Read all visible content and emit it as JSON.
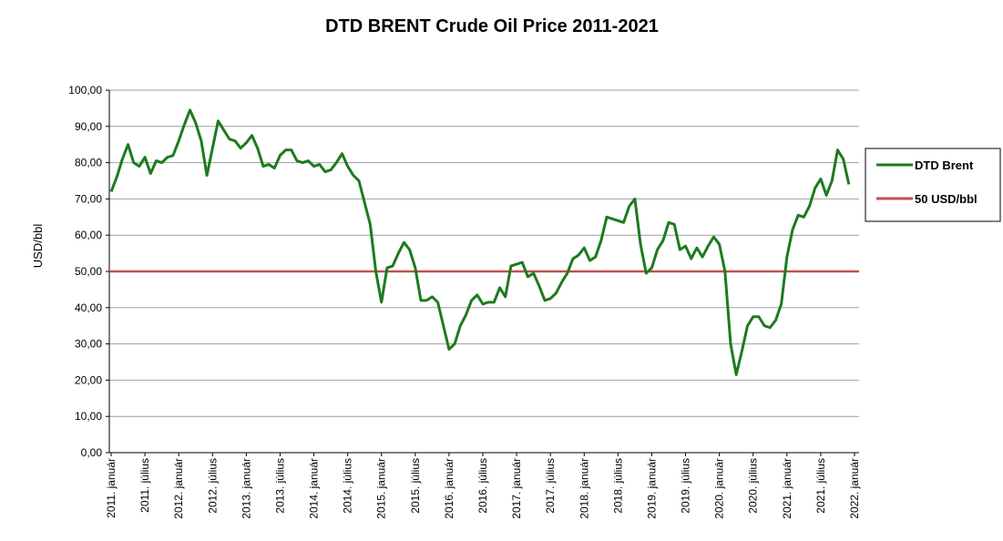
{
  "chart_data": {
    "type": "line",
    "title": "DTD BRENT Crude Oil Price 2011-2021",
    "y_label": "USD/bbl",
    "categories": [
      "2011. január",
      null,
      null,
      null,
      null,
      null,
      "2011. július",
      null,
      null,
      null,
      null,
      null,
      "2012. január",
      null,
      null,
      null,
      null,
      null,
      "2012. július",
      null,
      null,
      null,
      null,
      null,
      "2013. január",
      null,
      null,
      null,
      null,
      null,
      "2013. július",
      null,
      null,
      null,
      null,
      null,
      "2014. január",
      null,
      null,
      null,
      null,
      null,
      "2014. július",
      null,
      null,
      null,
      null,
      null,
      "2015. január",
      null,
      null,
      null,
      null,
      null,
      "2015. július",
      null,
      null,
      null,
      null,
      null,
      "2016. január",
      null,
      null,
      null,
      null,
      null,
      "2016. július",
      null,
      null,
      null,
      null,
      null,
      "2017. január",
      null,
      null,
      null,
      null,
      null,
      "2017. július",
      null,
      null,
      null,
      null,
      null,
      "2018. január",
      null,
      null,
      null,
      null,
      null,
      "2018. július",
      null,
      null,
      null,
      null,
      null,
      "2019. január",
      null,
      null,
      null,
      null,
      null,
      "2019. július",
      null,
      null,
      null,
      null,
      null,
      "2020. január",
      null,
      null,
      null,
      null,
      null,
      "2020. július",
      null,
      null,
      null,
      null,
      null,
      "2021. január",
      null,
      null,
      null,
      null,
      null,
      "2021. július",
      null,
      null,
      null,
      null,
      null,
      "2022. január"
    ],
    "series": [
      {
        "name": "DTD Brent",
        "color": "#1e7a1e",
        "values": [
          72,
          76,
          81,
          85,
          80,
          79,
          81.5,
          77,
          80.5,
          80,
          81.5,
          82,
          86,
          90.5,
          94.5,
          91,
          86,
          76.5,
          84,
          91.5,
          89,
          86.5,
          86,
          84,
          85.5,
          87.5,
          84,
          79,
          79.5,
          78.5,
          82,
          83.5,
          83.5,
          80.5,
          80,
          80.5,
          79,
          79.5,
          77.5,
          78,
          80,
          82.5,
          79,
          76.5,
          75,
          69,
          63,
          50,
          41.5,
          51,
          51.5,
          55,
          58,
          56,
          51,
          42,
          42,
          43,
          41.5,
          35,
          28.5,
          30,
          35,
          38,
          42,
          43.5,
          41,
          41.5,
          41.5,
          45.5,
          43,
          51.5,
          52,
          52.5,
          48.5,
          49.5,
          46,
          42,
          42.5,
          44,
          47,
          49.5,
          53.5,
          54.5,
          56.5,
          53,
          54,
          58.5,
          65,
          64.5,
          64,
          63.5,
          68,
          70,
          57.5,
          49.5,
          51,
          56,
          58.5,
          63.5,
          63,
          56,
          57,
          53.5,
          56.5,
          54,
          57,
          59.5,
          57.5,
          50,
          30,
          21.5,
          28,
          35,
          37.5,
          37.5,
          35,
          34.5,
          36.5,
          41,
          54,
          61.5,
          65.5,
          65,
          68,
          73,
          75.5,
          71,
          75,
          83.5,
          81,
          74,
          null
        ]
      }
    ],
    "reference_line": {
      "name": "50 USD/bbl",
      "value": 50,
      "color": "#c0504d"
    },
    "ylim": [
      0,
      100
    ],
    "yticks": [
      {
        "value": 0,
        "label": "0,00"
      },
      {
        "value": 10,
        "label": "10,00"
      },
      {
        "value": 20,
        "label": "20,00"
      },
      {
        "value": 30,
        "label": "30,00"
      },
      {
        "value": 40,
        "label": "40,00"
      },
      {
        "value": 50,
        "label": "50,00"
      },
      {
        "value": 60,
        "label": "60,00"
      },
      {
        "value": 70,
        "label": "70,00"
      },
      {
        "value": 80,
        "label": "80,00"
      },
      {
        "value": 90,
        "label": "90,00"
      },
      {
        "value": 100,
        "label": "100,00"
      }
    ],
    "grid": true,
    "legend": "right"
  }
}
